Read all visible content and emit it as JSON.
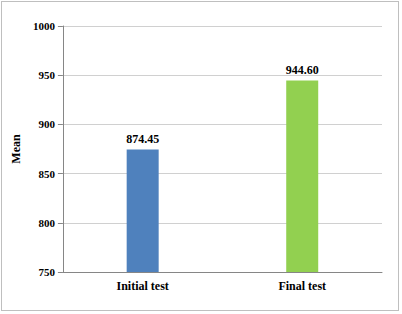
{
  "chart_data": {
    "type": "bar",
    "ylabel": "Mean",
    "categories": [
      "Initial test",
      "Final test"
    ],
    "values": [
      874.45,
      944.6
    ],
    "value_labels": [
      "874.45",
      "944.60"
    ],
    "colors": [
      "#4f81bd",
      "#92d050"
    ],
    "ylim": [
      750,
      1000
    ],
    "yticks": [
      750,
      800,
      850,
      900,
      950,
      1000
    ],
    "grid": true,
    "data_labels": true
  }
}
